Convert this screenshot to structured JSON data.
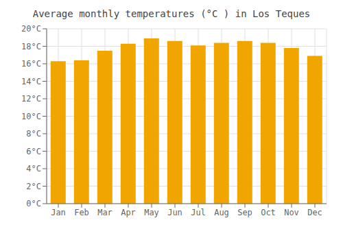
{
  "chart_data": {
    "type": "bar",
    "title": "Average monthly temperatures (°C ) in Los Teques",
    "categories": [
      "Jan",
      "Feb",
      "Mar",
      "Apr",
      "May",
      "Jun",
      "Jul",
      "Aug",
      "Sep",
      "Oct",
      "Nov",
      "Dec"
    ],
    "values": [
      16.3,
      16.4,
      17.5,
      18.3,
      18.9,
      18.6,
      18.1,
      18.4,
      18.6,
      18.4,
      17.8,
      16.9
    ],
    "color": "#F0A500",
    "ylim": [
      0,
      20
    ],
    "yticks": [
      {
        "value": 0,
        "label": "0°C"
      },
      {
        "value": 2,
        "label": "2°C"
      },
      {
        "value": 4,
        "label": "4°C"
      },
      {
        "value": 6,
        "label": "6°C"
      },
      {
        "value": 8,
        "label": "8°C"
      },
      {
        "value": 10,
        "label": "10°C"
      },
      {
        "value": 12,
        "label": "12°C"
      },
      {
        "value": 14,
        "label": "14°C"
      },
      {
        "value": 16,
        "label": "16°C"
      },
      {
        "value": 18,
        "label": "18°C"
      },
      {
        "value": 20,
        "label": "20°C"
      }
    ],
    "grid": true
  }
}
